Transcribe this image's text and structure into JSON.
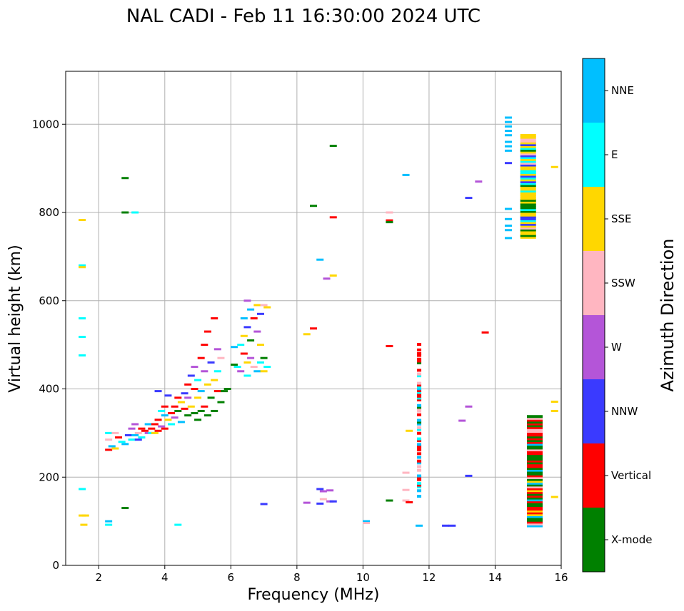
{
  "chart_data": {
    "type": "scatter",
    "title": "NAL CADI - Feb 11 16:30:00 2024 UTC",
    "xlabel": "Frequency (MHz)",
    "ylabel": "Virtual height (km)",
    "xlim": [
      1,
      16
    ],
    "ylim": [
      0,
      1120
    ],
    "xticks": [
      2,
      4,
      6,
      8,
      10,
      12,
      14,
      16
    ],
    "yticks": [
      0,
      200,
      400,
      600,
      800,
      1000
    ],
    "grid": true,
    "colorbar": {
      "label": "Azimuth Direction",
      "categories": [
        {
          "name": "X-mode",
          "color": "#008000"
        },
        {
          "name": "Vertical",
          "color": "#ff0000"
        },
        {
          "name": "NNW",
          "color": "#3a3aff"
        },
        {
          "name": "W",
          "color": "#b455d8"
        },
        {
          "name": "SSW",
          "color": "#ffb6c1"
        },
        {
          "name": "SSE",
          "color": "#ffd700"
        },
        {
          "name": "E",
          "color": "#00ffff"
        },
        {
          "name": "NNE",
          "color": "#00bfff"
        }
      ]
    },
    "points": [
      [
        1.5,
        783,
        "SSE"
      ],
      [
        1.5,
        680,
        "E"
      ],
      [
        1.5,
        676,
        "SSE"
      ],
      [
        1.5,
        560,
        "E"
      ],
      [
        1.5,
        518,
        "E"
      ],
      [
        1.5,
        476,
        "E"
      ],
      [
        1.5,
        173,
        "E"
      ],
      [
        1.5,
        113,
        "SSE"
      ],
      [
        1.6,
        113,
        "SSE"
      ],
      [
        1.55,
        92,
        "SSE"
      ],
      [
        2.3,
        100,
        "NNE"
      ],
      [
        2.3,
        92,
        "E"
      ],
      [
        2.8,
        878,
        "X-mode"
      ],
      [
        2.8,
        800,
        "X-mode"
      ],
      [
        3.1,
        800,
        "E"
      ],
      [
        2.8,
        130,
        "X-mode"
      ],
      [
        4.4,
        92,
        "E"
      ],
      [
        2.3,
        300,
        "E"
      ],
      [
        2.3,
        285,
        "SSW"
      ],
      [
        2.3,
        262,
        "Vertical"
      ],
      [
        2.4,
        270,
        "NNE"
      ],
      [
        2.5,
        265,
        "SSE"
      ],
      [
        2.5,
        300,
        "SSW"
      ],
      [
        2.6,
        290,
        "Vertical"
      ],
      [
        2.7,
        280,
        "E"
      ],
      [
        2.8,
        275,
        "NNE"
      ],
      [
        2.9,
        295,
        "NNW"
      ],
      [
        3.0,
        310,
        "W"
      ],
      [
        3.0,
        285,
        "E"
      ],
      [
        3.1,
        320,
        "W"
      ],
      [
        3.1,
        295,
        "NNE"
      ],
      [
        3.2,
        300,
        "SSW"
      ],
      [
        3.2,
        285,
        "NNW"
      ],
      [
        3.3,
        310,
        "Vertical"
      ],
      [
        3.3,
        290,
        "E"
      ],
      [
        3.4,
        305,
        "Vertical"
      ],
      [
        3.5,
        320,
        "NNE"
      ],
      [
        3.5,
        300,
        "W"
      ],
      [
        3.6,
        310,
        "Vertical"
      ],
      [
        3.6,
        300,
        "E"
      ],
      [
        3.7,
        320,
        "Vertical"
      ],
      [
        3.7,
        300,
        "SSE"
      ],
      [
        3.8,
        330,
        "Vertical"
      ],
      [
        3.8,
        305,
        "Vertical"
      ],
      [
        3.8,
        395,
        "NNW"
      ],
      [
        3.9,
        350,
        "E"
      ],
      [
        3.9,
        315,
        "W"
      ],
      [
        4.0,
        340,
        "NNE"
      ],
      [
        4.0,
        310,
        "Vertical"
      ],
      [
        4.0,
        360,
        "Vertical"
      ],
      [
        4.1,
        330,
        "SSE"
      ],
      [
        4.1,
        385,
        "NNW"
      ],
      [
        4.2,
        345,
        "Vertical"
      ],
      [
        4.2,
        320,
        "E"
      ],
      [
        4.3,
        360,
        "Vertical"
      ],
      [
        4.3,
        335,
        "W"
      ],
      [
        4.4,
        380,
        "Vertical"
      ],
      [
        4.4,
        350,
        "X-mode"
      ],
      [
        4.5,
        325,
        "NNE"
      ],
      [
        4.5,
        370,
        "SSE"
      ],
      [
        4.6,
        355,
        "Vertical"
      ],
      [
        4.6,
        390,
        "NNW"
      ],
      [
        4.7,
        380,
        "W"
      ],
      [
        4.7,
        340,
        "X-mode"
      ],
      [
        4.7,
        410,
        "Vertical"
      ],
      [
        4.8,
        360,
        "SSE"
      ],
      [
        4.8,
        430,
        "NNW"
      ],
      [
        4.9,
        345,
        "X-mode"
      ],
      [
        4.9,
        400,
        "Vertical"
      ],
      [
        4.9,
        450,
        "W"
      ],
      [
        5.0,
        380,
        "SSE"
      ],
      [
        5.0,
        330,
        "X-mode"
      ],
      [
        5.0,
        420,
        "E"
      ],
      [
        5.1,
        470,
        "Vertical"
      ],
      [
        5.1,
        395,
        "NNE"
      ],
      [
        5.1,
        350,
        "X-mode"
      ],
      [
        5.2,
        440,
        "W"
      ],
      [
        5.2,
        500,
        "Vertical"
      ],
      [
        5.2,
        360,
        "Vertical"
      ],
      [
        5.3,
        410,
        "SSE"
      ],
      [
        5.3,
        530,
        "Vertical"
      ],
      [
        5.3,
        340,
        "X-mode"
      ],
      [
        5.4,
        460,
        "NNW"
      ],
      [
        5.4,
        380,
        "X-mode"
      ],
      [
        5.5,
        420,
        "SSE"
      ],
      [
        5.5,
        560,
        "Vertical"
      ],
      [
        5.5,
        350,
        "X-mode"
      ],
      [
        5.6,
        490,
        "W"
      ],
      [
        5.6,
        440,
        "E"
      ],
      [
        5.6,
        395,
        "Vertical"
      ],
      [
        5.7,
        470,
        "SSW"
      ],
      [
        5.7,
        370,
        "X-mode"
      ],
      [
        5.8,
        395,
        "X-mode"
      ],
      [
        5.9,
        400,
        "X-mode"
      ],
      [
        6.1,
        455,
        "X-mode"
      ],
      [
        6.1,
        495,
        "NNE"
      ],
      [
        6.2,
        450,
        "E"
      ],
      [
        6.3,
        500,
        "E"
      ],
      [
        6.3,
        440,
        "W"
      ],
      [
        6.4,
        560,
        "NNE"
      ],
      [
        6.4,
        520,
        "SSE"
      ],
      [
        6.4,
        480,
        "Vertical"
      ],
      [
        6.5,
        600,
        "W"
      ],
      [
        6.5,
        540,
        "NNW"
      ],
      [
        6.5,
        460,
        "SSE"
      ],
      [
        6.5,
        430,
        "E"
      ],
      [
        6.6,
        580,
        "NNE"
      ],
      [
        6.6,
        510,
        "X-mode"
      ],
      [
        6.6,
        470,
        "W"
      ],
      [
        6.7,
        560,
        "Vertical"
      ],
      [
        6.7,
        450,
        "SSW"
      ],
      [
        6.8,
        590,
        "SSE"
      ],
      [
        6.8,
        530,
        "W"
      ],
      [
        6.8,
        440,
        "NNE"
      ],
      [
        6.9,
        570,
        "NNW"
      ],
      [
        6.9,
        500,
        "SSE"
      ],
      [
        6.9,
        460,
        "E"
      ],
      [
        7.0,
        590,
        "SSW"
      ],
      [
        7.0,
        470,
        "X-mode"
      ],
      [
        7.0,
        440,
        "SSE"
      ],
      [
        7.1,
        585,
        "SSE"
      ],
      [
        7.1,
        450,
        "E"
      ],
      [
        7.0,
        139,
        "NNW"
      ],
      [
        8.3,
        142,
        "W"
      ],
      [
        8.3,
        524,
        "SSE"
      ],
      [
        8.5,
        537,
        "Vertical"
      ],
      [
        8.5,
        815,
        "X-mode"
      ],
      [
        8.7,
        693,
        "NNE"
      ],
      [
        8.7,
        173,
        "NNW"
      ],
      [
        8.7,
        140,
        "NNW"
      ],
      [
        8.8,
        150,
        "SSW"
      ],
      [
        8.8,
        168,
        "W"
      ],
      [
        8.9,
        650,
        "W"
      ],
      [
        9.0,
        145,
        "W"
      ],
      [
        9.0,
        170,
        "W"
      ],
      [
        9.1,
        145,
        "NNW"
      ],
      [
        9.1,
        657,
        "SSE"
      ],
      [
        9.1,
        951,
        "X-mode"
      ],
      [
        9.1,
        789,
        "Vertical"
      ],
      [
        10.1,
        100,
        "NNE"
      ],
      [
        10.1,
        96,
        "SSW"
      ],
      [
        10.8,
        147,
        "X-mode"
      ],
      [
        10.8,
        497,
        "Vertical"
      ],
      [
        10.8,
        800,
        "SSW"
      ],
      [
        10.8,
        782,
        "Vertical"
      ],
      [
        10.8,
        778,
        "X-mode"
      ],
      [
        11.3,
        885,
        "NNE"
      ],
      [
        11.3,
        210,
        "SSW"
      ],
      [
        11.3,
        171,
        "SSW"
      ],
      [
        11.3,
        147,
        "SSW"
      ],
      [
        11.4,
        305,
        "SSE"
      ],
      [
        11.4,
        143,
        "Vertical"
      ],
      [
        11.7,
        90,
        "NNE"
      ],
      [
        12.5,
        90,
        "NNW"
      ],
      [
        12.7,
        90,
        "NNW"
      ],
      [
        13.0,
        328,
        "W"
      ],
      [
        13.2,
        203,
        "NNW"
      ],
      [
        13.2,
        360,
        "W"
      ],
      [
        13.2,
        833,
        "NNW"
      ],
      [
        13.5,
        870,
        "W"
      ],
      [
        13.7,
        528,
        "Vertical"
      ],
      [
        14.4,
        1015,
        "NNE"
      ],
      [
        14.4,
        1005,
        "NNE"
      ],
      [
        14.4,
        995,
        "NNE"
      ],
      [
        14.4,
        985,
        "NNE"
      ],
      [
        14.4,
        975,
        "NNE"
      ],
      [
        14.4,
        960,
        "NNE"
      ],
      [
        14.4,
        950,
        "NNE"
      ],
      [
        14.4,
        940,
        "NNE"
      ],
      [
        14.4,
        912,
        "NNW"
      ],
      [
        14.4,
        808,
        "NNE"
      ],
      [
        14.4,
        785,
        "NNE"
      ],
      [
        14.4,
        770,
        "NNE"
      ],
      [
        14.4,
        760,
        "NNE"
      ],
      [
        14.4,
        742,
        "NNE"
      ],
      [
        15.8,
        903,
        "SSE"
      ],
      [
        15.8,
        371,
        "SSE"
      ],
      [
        15.8,
        350,
        "SSE"
      ],
      [
        15.8,
        155,
        "SSE"
      ]
    ],
    "stacks": [
      {
        "x": 11.7,
        "ymin": 155,
        "ymax": 500,
        "note": "vertical column at 11.7 MHz"
      },
      {
        "x": 15.0,
        "ymin": 742,
        "ymax": 975,
        "note": "upper column at 15 MHz"
      },
      {
        "x": 15.2,
        "ymin": 88,
        "ymax": 336,
        "note": "lower column at 15.2 MHz"
      }
    ]
  }
}
